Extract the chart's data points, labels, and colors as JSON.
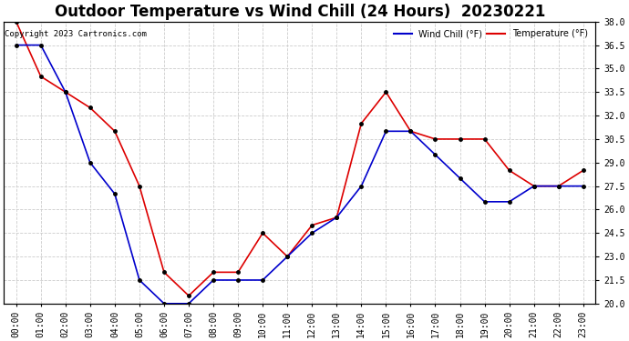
{
  "title": "Outdoor Temperature vs Wind Chill (24 Hours)  20230221",
  "copyright": "Copyright 2023 Cartronics.com",
  "legend_wind_chill": "Wind Chill (°F)",
  "legend_temperature": "Temperature (°F)",
  "x_labels": [
    "00:00",
    "01:00",
    "02:00",
    "03:00",
    "04:00",
    "05:00",
    "06:00",
    "07:00",
    "08:00",
    "09:00",
    "10:00",
    "11:00",
    "12:00",
    "13:00",
    "14:00",
    "15:00",
    "16:00",
    "17:00",
    "18:00",
    "19:00",
    "20:00",
    "21:00",
    "22:00",
    "23:00"
  ],
  "temperature": [
    38.0,
    34.5,
    33.5,
    32.5,
    31.0,
    27.5,
    22.0,
    20.5,
    22.0,
    22.0,
    24.5,
    23.0,
    25.0,
    25.5,
    31.5,
    33.5,
    31.0,
    30.5,
    30.5,
    30.5,
    28.5,
    27.5,
    27.5,
    28.5
  ],
  "wind_chill": [
    36.5,
    36.5,
    33.5,
    29.0,
    27.0,
    21.5,
    20.0,
    20.0,
    21.5,
    21.5,
    21.5,
    23.0,
    24.5,
    25.5,
    27.5,
    31.0,
    31.0,
    29.5,
    28.0,
    26.5,
    26.5,
    27.5,
    27.5,
    27.5
  ],
  "ylim": [
    20.0,
    38.0
  ],
  "yticks": [
    20.0,
    21.5,
    23.0,
    24.5,
    26.0,
    27.5,
    29.0,
    30.5,
    32.0,
    33.5,
    35.0,
    36.5,
    38.0
  ],
  "temp_color": "#dd0000",
  "wind_chill_color": "#0000cc",
  "marker_color": "black",
  "title_fontsize": 12,
  "background_color": "#ffffff",
  "grid_color": "#cccccc"
}
